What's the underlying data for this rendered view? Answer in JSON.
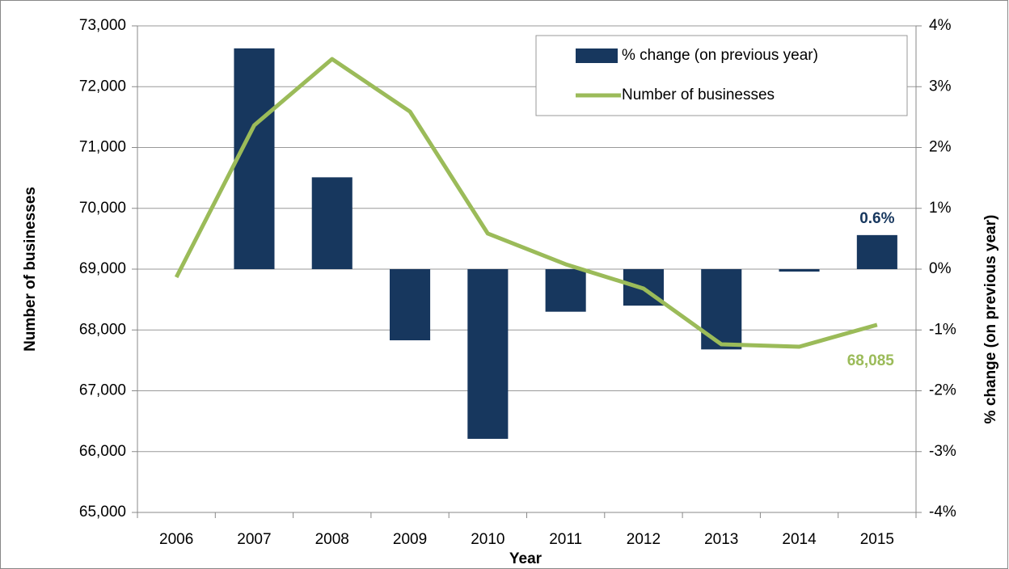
{
  "chart_data": {
    "type": "bar_line",
    "xlabel": "Year",
    "ylabel": "Number of businesses",
    "y2label": "% change (on previous year)",
    "categories": [
      "2006",
      "2007",
      "2008",
      "2009",
      "2010",
      "2011",
      "2012",
      "2013",
      "2014",
      "2015"
    ],
    "series": [
      {
        "name": "% change (on previous year)",
        "type": "bar",
        "axis": "y2",
        "color": "#17375e",
        "values": [
          null,
          3.63,
          1.51,
          -1.17,
          -2.79,
          -0.7,
          -0.6,
          -1.32,
          -0.04,
          0.56
        ],
        "value_labels": [
          null,
          null,
          null,
          null,
          null,
          null,
          null,
          null,
          null,
          "0.6%"
        ]
      },
      {
        "name": "Number of businesses",
        "type": "line",
        "axis": "y",
        "color": "#9bbb59",
        "values": [
          68867,
          71365,
          72455,
          71591,
          69585,
          69080,
          68681,
          67764,
          67724,
          68085
        ],
        "value_labels": [
          null,
          null,
          null,
          null,
          null,
          null,
          null,
          null,
          null,
          "68,085"
        ]
      }
    ],
    "ylim": [
      65000,
      73000
    ],
    "yticks": [
      {
        "value": 65000,
        "label": "65,000"
      },
      {
        "value": 66000,
        "label": "66,000"
      },
      {
        "value": 67000,
        "label": "67,000"
      },
      {
        "value": 68000,
        "label": "68,000"
      },
      {
        "value": 69000,
        "label": "69,000"
      },
      {
        "value": 70000,
        "label": "70,000"
      },
      {
        "value": 71000,
        "label": "71,000"
      },
      {
        "value": 72000,
        "label": "72,000"
      },
      {
        "value": 73000,
        "label": "73,000"
      }
    ],
    "y2lim": [
      -4,
      4
    ],
    "y2ticks": [
      {
        "value": -4,
        "label": "-4%"
      },
      {
        "value": -3,
        "label": "-3%"
      },
      {
        "value": -2,
        "label": "-2%"
      },
      {
        "value": -1,
        "label": "-1%"
      },
      {
        "value": 0,
        "label": "0%"
      },
      {
        "value": 1,
        "label": "1%"
      },
      {
        "value": 2,
        "label": "2%"
      },
      {
        "value": 3,
        "label": "3%"
      },
      {
        "value": 4,
        "label": "4%"
      }
    ],
    "grid": true,
    "legend": "top-right"
  }
}
